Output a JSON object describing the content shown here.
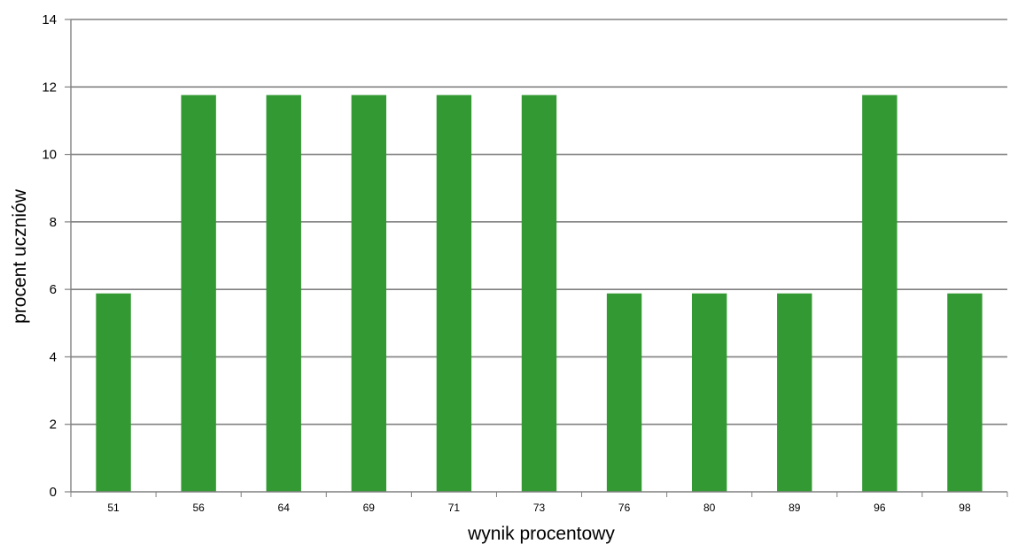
{
  "chart_data": {
    "type": "bar",
    "categories": [
      "51",
      "56",
      "64",
      "69",
      "71",
      "73",
      "76",
      "80",
      "89",
      "96",
      "98"
    ],
    "values": [
      5.88,
      11.76,
      11.76,
      11.76,
      11.76,
      11.76,
      5.88,
      5.88,
      5.88,
      11.76,
      5.88
    ],
    "xlabel": "wynik procentowy",
    "ylabel": "procent uczniów",
    "ylim": [
      0,
      14
    ],
    "yticks": [
      "0",
      "2",
      "4",
      "6",
      "8",
      "10",
      "12",
      "14"
    ],
    "grid": true,
    "legend": "none",
    "bar_color": "#339933",
    "grid_color": "#808080"
  }
}
